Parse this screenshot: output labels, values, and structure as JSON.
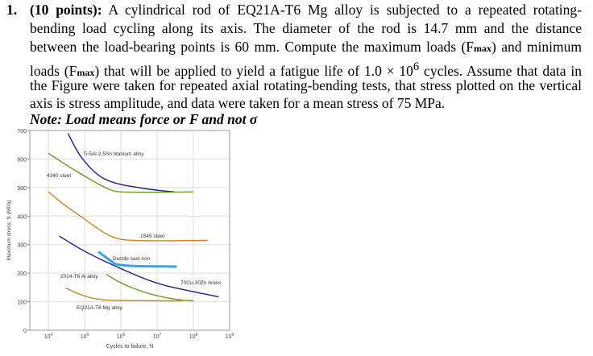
{
  "problem": {
    "number": "1.",
    "points": "(10 points):",
    "lines": [
      " A cylindrical rod of EQ21A-T6 Mg alloy is subjected to a repeated rotating-",
      "bending load cycling along its axis. The diameter of the rod is 14.7 mm and the distance",
      "between the load-bearing points is 60 mm. Compute the maximum loads (F",
      "max",
      ") and minimum",
      "loads (F",
      "max",
      ") that will be applied to yield a fatigue life of 1.0 × 10",
      "6",
      " cycles. Assume that data in",
      "the Figure were taken for repeated axial rotating-bending tests, that stress plotted on the vertical",
      "axis is stress amplitude, and data were taken for a mean stress of 75 MPa."
    ],
    "note": "Note: Load means force or F and not σ"
  },
  "chart_data": {
    "type": "line",
    "xlabel": "Cycles to failure, N",
    "ylabel": "Maximum stress, S (MPa)",
    "xscale": "log",
    "xlim": [
      10000,
      1000000000
    ],
    "ylim": [
      0,
      700
    ],
    "xticks": [
      {
        "v": 10000,
        "b": "10",
        "e": "4"
      },
      {
        "v": 100000,
        "b": "10",
        "e": "5"
      },
      {
        "v": 1000000,
        "b": "10",
        "e": "6"
      },
      {
        "v": 10000000,
        "b": "10",
        "e": "7"
      },
      {
        "v": 100000000,
        "b": "10",
        "e": "8"
      },
      {
        "v": 1000000000,
        "b": "10",
        "e": "9"
      }
    ],
    "yticks": [
      "0",
      "100",
      "200",
      "300",
      "400",
      "500",
      "600",
      "700"
    ],
    "grid": true,
    "series": [
      {
        "name": "Ti-5Al-2.5Sn titanium alloy",
        "color": "#1c1c8a",
        "points": [
          [
            35000,
            690
          ],
          [
            60000,
            630
          ],
          [
            100000,
            590
          ],
          [
            200000,
            550
          ],
          [
            400000,
            525
          ],
          [
            1000000,
            510
          ],
          [
            3000000,
            500
          ],
          [
            10000000,
            490
          ],
          [
            30000000,
            485
          ]
        ]
      },
      {
        "name": "4340 steel",
        "color": "#6f9a1c",
        "points": [
          [
            10000,
            620
          ],
          [
            30000,
            580
          ],
          [
            100000,
            540
          ],
          [
            300000,
            505
          ],
          [
            600000,
            488
          ],
          [
            1000000,
            484
          ],
          [
            10000000,
            483
          ],
          [
            100000000,
            485
          ]
        ]
      },
      {
        "name": "1045 steel",
        "color": "#c8842a",
        "points": [
          [
            10000,
            485
          ],
          [
            30000,
            435
          ],
          [
            100000,
            390
          ],
          [
            300000,
            345
          ],
          [
            700000,
            322
          ],
          [
            1500000,
            315
          ],
          [
            10000000,
            313
          ],
          [
            250000000,
            315
          ]
        ]
      },
      {
        "name": "Ductile cast iron",
        "color": "#3aa0e8",
        "points": [
          [
            240000,
            275
          ],
          [
            500000,
            245
          ],
          [
            800000,
            225
          ],
          [
            35000000,
            223
          ]
        ]
      },
      {
        "name": "2014-T6 Al alloy",
        "color": "#1c1c8a",
        "points": [
          [
            20000,
            330
          ],
          [
            100000,
            275
          ],
          [
            1000000,
            215
          ],
          [
            10000000,
            162
          ],
          [
            100000000,
            135
          ],
          [
            500000000,
            117
          ]
        ]
      },
      {
        "name": "70Cu-30Zn brass",
        "color": "#6f9a1c",
        "points": [
          [
            400000,
            195
          ],
          [
            1000000,
            165
          ],
          [
            3000000,
            140
          ],
          [
            10000000,
            120
          ],
          [
            40000000,
            106
          ],
          [
            100000000,
            103
          ]
        ]
      },
      {
        "name": "EQ21A-T6 Mg alloy",
        "color": "#c8842a",
        "points": [
          [
            30000,
            148
          ],
          [
            100000,
            118
          ],
          [
            300000,
            106
          ],
          [
            1000000,
            104
          ],
          [
            10000000,
            103
          ],
          [
            50000000,
            103
          ]
        ]
      }
    ]
  }
}
